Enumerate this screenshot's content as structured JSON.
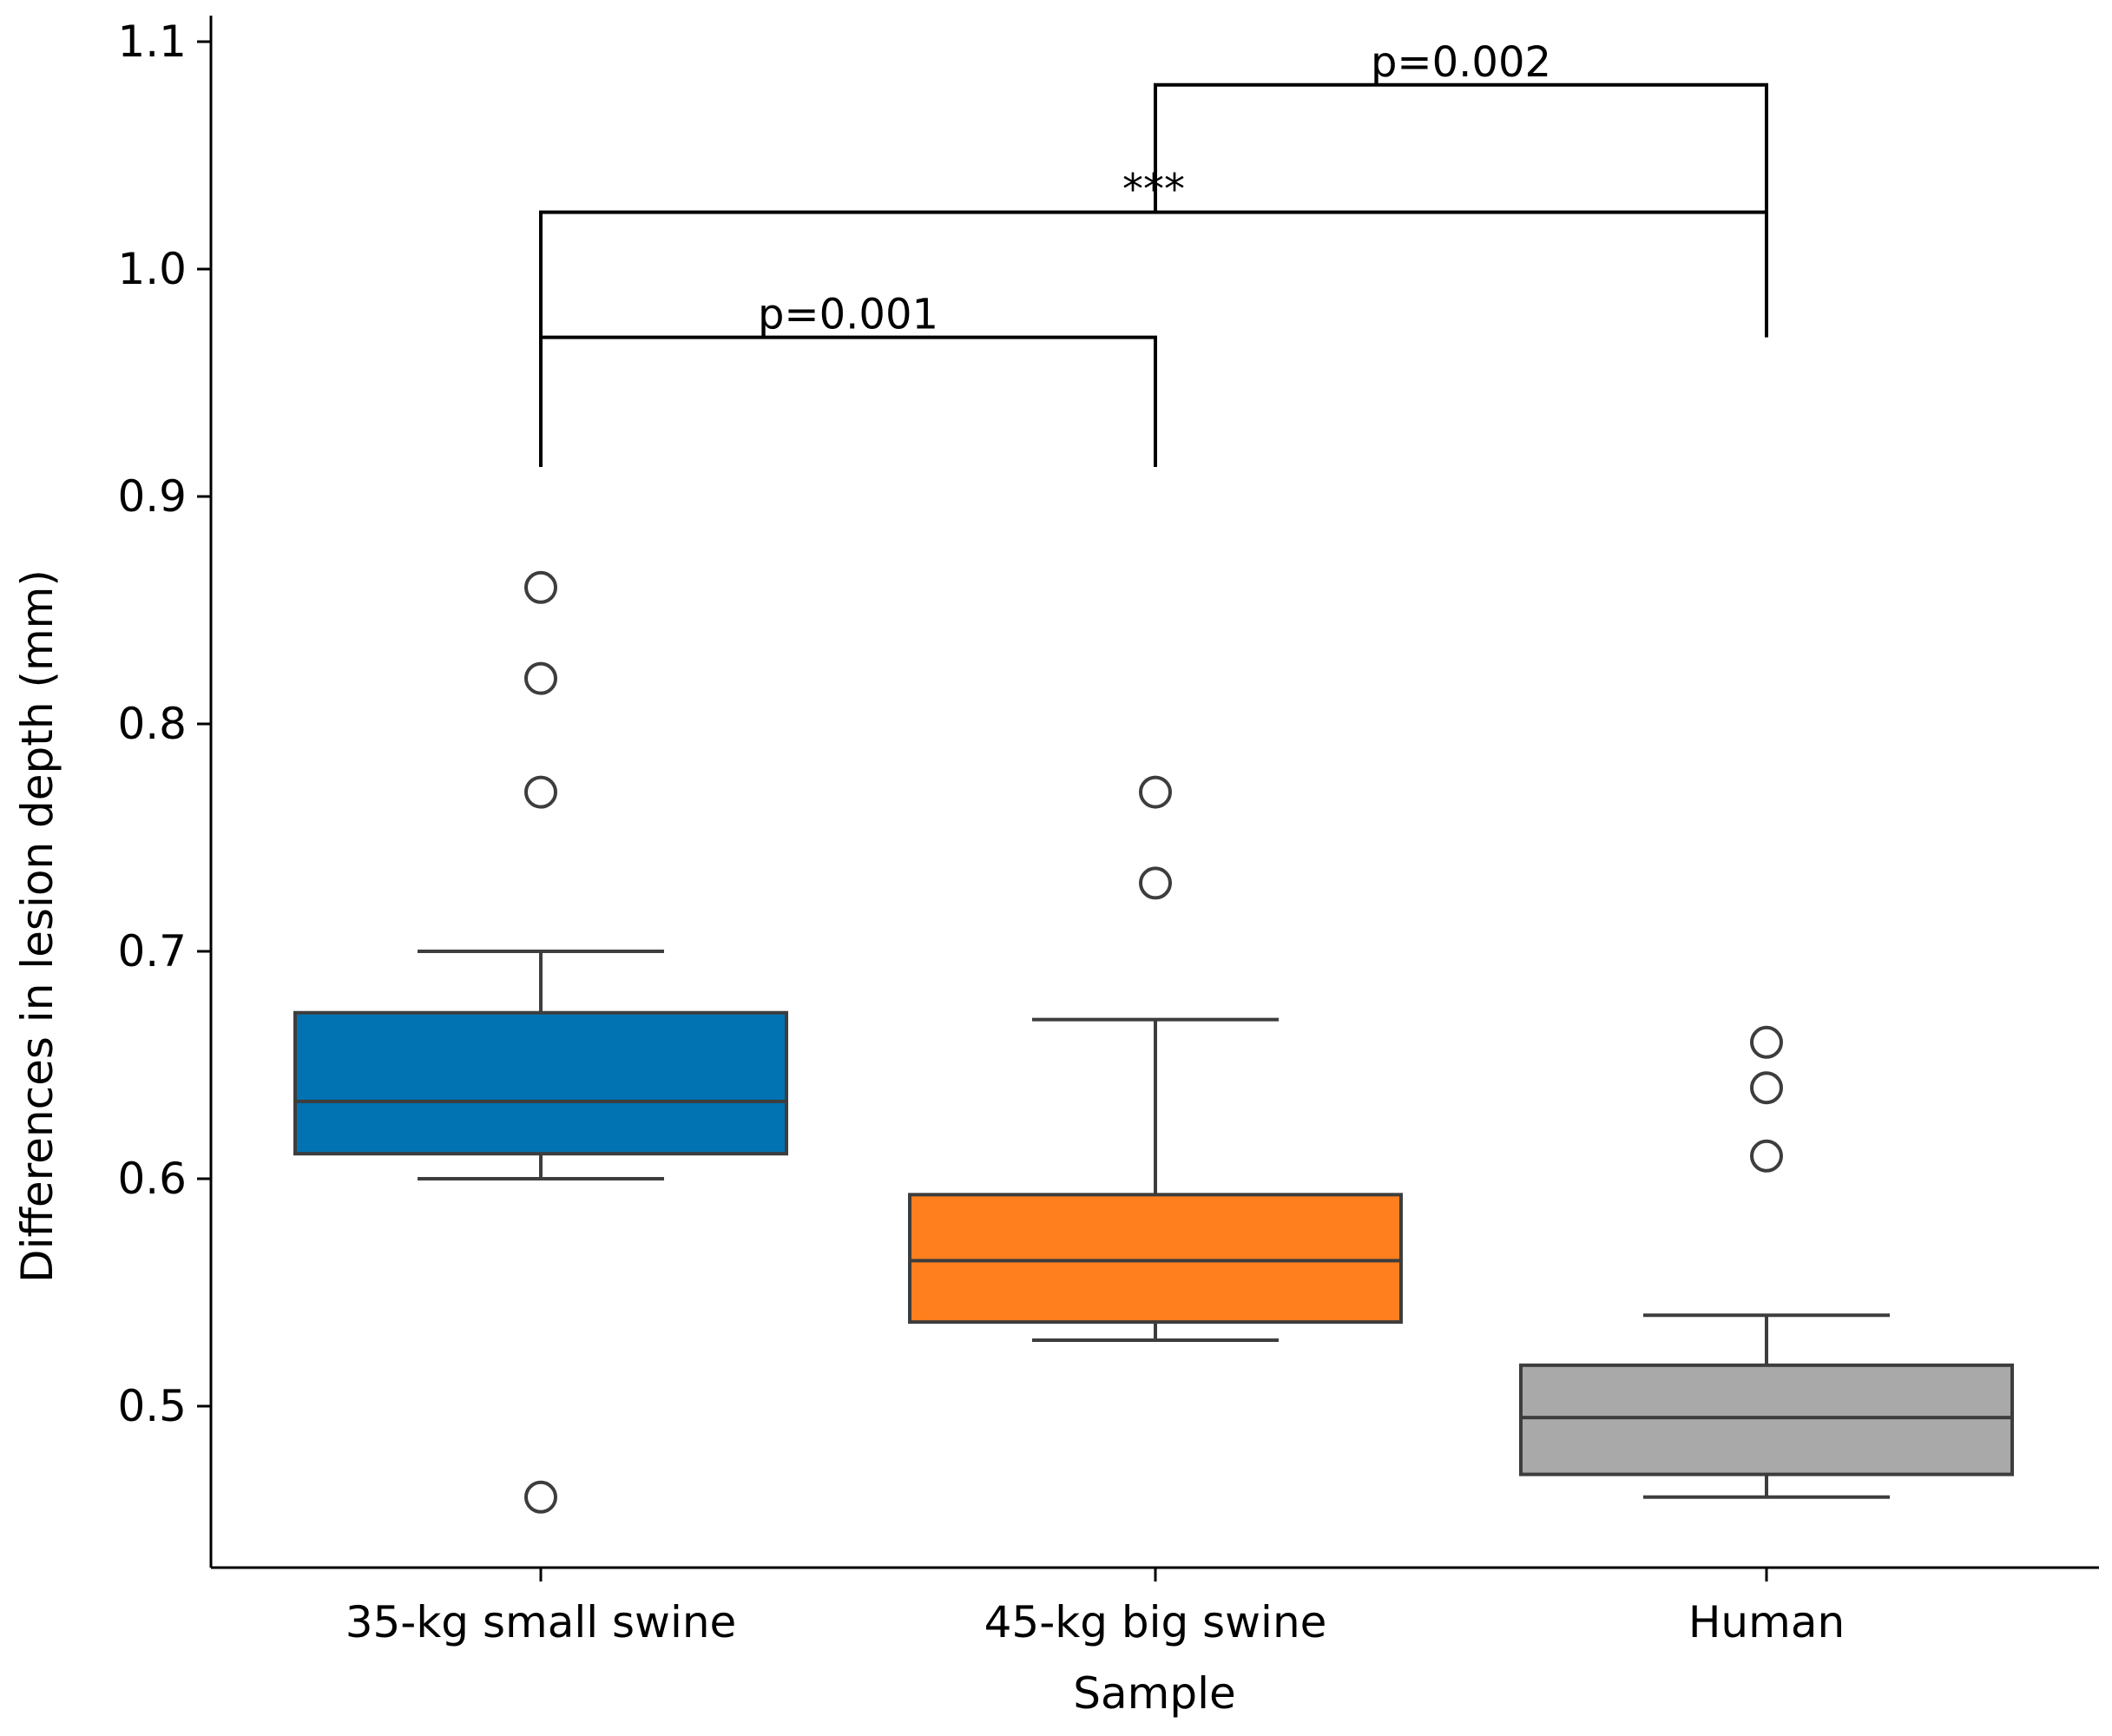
{
  "chart_data": {
    "type": "box",
    "title": "",
    "xlabel": "Sample",
    "ylabel": "Differences in lesion depth (mm)",
    "ylim": [
      0.43,
      1.11
    ],
    "yticks": [
      0.5,
      0.6,
      0.7,
      0.8,
      0.9,
      1.0,
      1.1
    ],
    "ytick_labels": [
      "0.5",
      "0.6",
      "0.7",
      "0.8",
      "0.9",
      "1.0",
      "1.1"
    ],
    "categories": [
      "35-kg small swine",
      "45-kg big swine",
      "Human"
    ],
    "boxes": [
      {
        "name": "35-kg small swine",
        "color": "#0173b2",
        "whisker_low": 0.6,
        "q1": 0.611,
        "median": 0.634,
        "q3": 0.673,
        "whisker_high": 0.7,
        "outliers": [
          0.86,
          0.82,
          0.77,
          0.46
        ]
      },
      {
        "name": "45-kg big swine",
        "color": "#ff7f1e",
        "whisker_low": 0.529,
        "q1": 0.537,
        "median": 0.564,
        "q3": 0.593,
        "whisker_high": 0.67,
        "outliers": [
          0.77,
          0.73
        ]
      },
      {
        "name": "Human",
        "color": "#a9a9a9",
        "whisker_low": 0.46,
        "q1": 0.47,
        "median": 0.495,
        "q3": 0.518,
        "whisker_high": 0.54,
        "outliers": [
          0.66,
          0.64,
          0.61
        ]
      }
    ],
    "annotations": [
      {
        "from": 0,
        "to": 1,
        "y_low": 0.913,
        "y_bar": 0.97,
        "label": "p=0.001"
      },
      {
        "from": 0,
        "to": 2,
        "y_low": 0.97,
        "y_bar": 1.025,
        "label": "***"
      },
      {
        "from": 1,
        "to": 2,
        "y_low": 1.025,
        "y_bar": 1.081,
        "label": "p=0.002"
      }
    ]
  }
}
